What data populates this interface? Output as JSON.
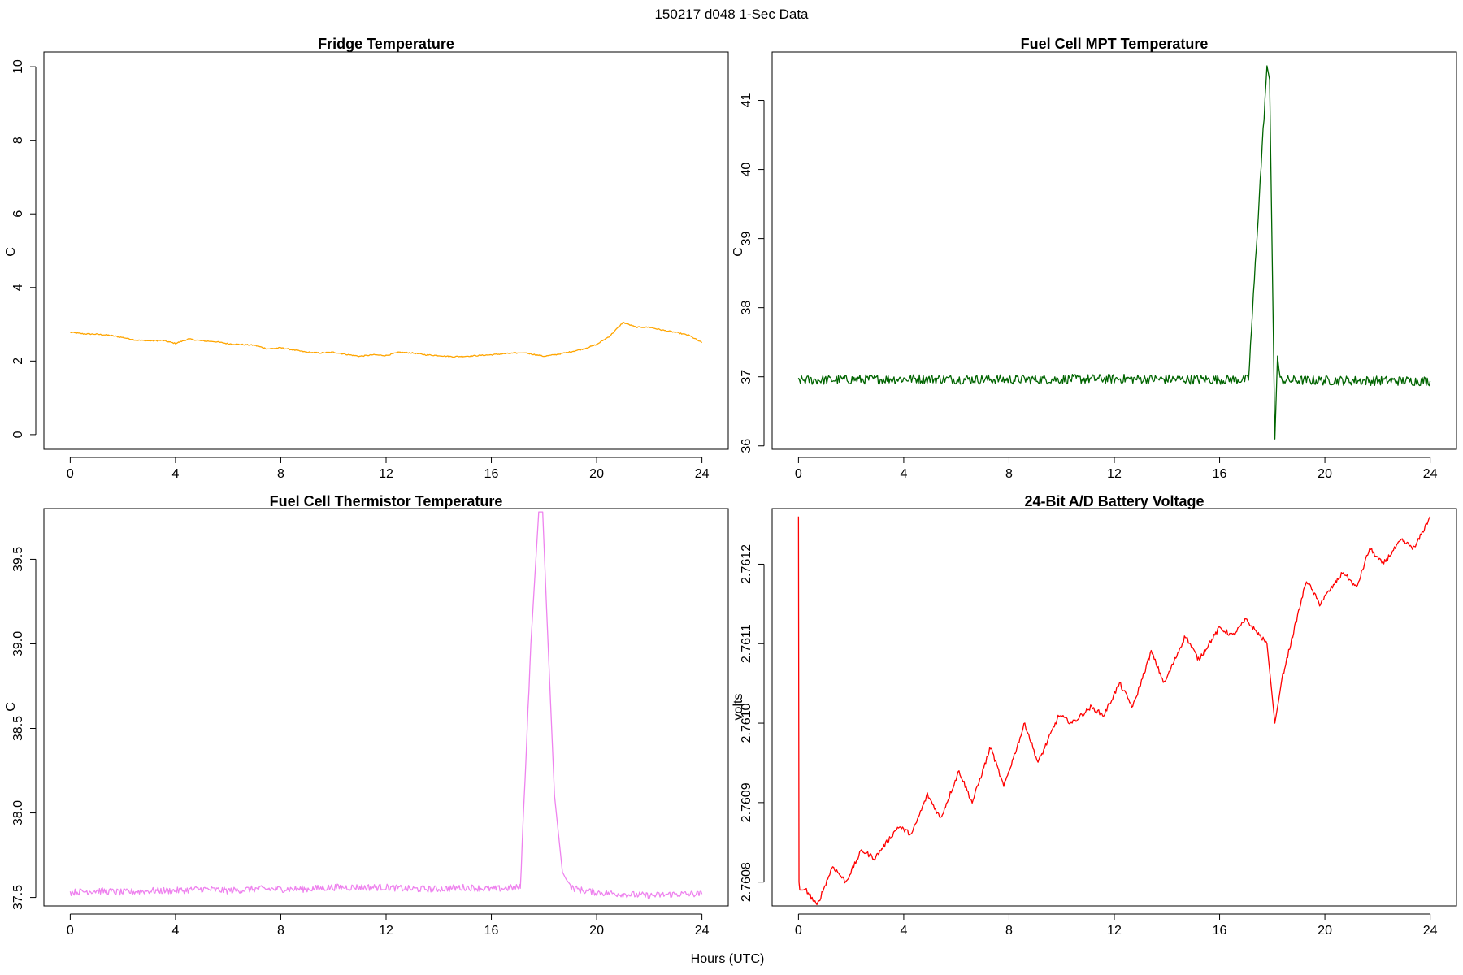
{
  "main_title": "150217   d048   1-Sec Data",
  "x_label": "Hours (UTC)",
  "chart_data": [
    {
      "id": "fridge",
      "type": "line",
      "title": "Fridge Temperature",
      "ylabel": "C",
      "color": "#FFA500",
      "xlim": [
        -1,
        25
      ],
      "ylim": [
        -0.4,
        10.4
      ],
      "x_ticks": [
        0,
        4,
        8,
        12,
        16,
        20,
        24
      ],
      "y_ticks": [
        0,
        2,
        4,
        6,
        8,
        10
      ],
      "y_tick_labels": [
        "0",
        "2",
        "4",
        "6",
        "8",
        "10"
      ],
      "noise": 0.015,
      "x": [
        0,
        0.5,
        1.0,
        1.5,
        2.0,
        2.5,
        3.0,
        3.5,
        4.0,
        4.5,
        5.0,
        5.5,
        6.0,
        6.5,
        7.0,
        7.5,
        8.0,
        8.5,
        9.0,
        9.5,
        10.0,
        10.5,
        11.0,
        11.5,
        12.0,
        12.5,
        13.0,
        13.5,
        14.0,
        14.5,
        15.0,
        15.5,
        16.0,
        16.5,
        17.0,
        17.3,
        18.0,
        18.5,
        19.0,
        19.5,
        20.0,
        20.5,
        21.0,
        21.5,
        22.0,
        22.5,
        23.0,
        23.5,
        24.0
      ],
      "y": [
        2.78,
        2.74,
        2.73,
        2.7,
        2.64,
        2.57,
        2.55,
        2.56,
        2.48,
        2.6,
        2.55,
        2.53,
        2.47,
        2.45,
        2.43,
        2.33,
        2.36,
        2.3,
        2.24,
        2.22,
        2.24,
        2.18,
        2.13,
        2.17,
        2.15,
        2.24,
        2.22,
        2.17,
        2.15,
        2.12,
        2.13,
        2.15,
        2.17,
        2.2,
        2.22,
        2.22,
        2.13,
        2.18,
        2.25,
        2.33,
        2.45,
        2.68,
        3.05,
        2.92,
        2.92,
        2.84,
        2.78,
        2.7,
        2.5
      ]
    },
    {
      "id": "mpt",
      "type": "line",
      "title": "Fuel Cell MPT Temperature",
      "ylabel": "C",
      "color": "#006400",
      "xlim": [
        -1,
        25
      ],
      "ylim": [
        35.95,
        41.7
      ],
      "x_ticks": [
        0,
        4,
        8,
        12,
        16,
        20,
        24
      ],
      "y_ticks": [
        36,
        37,
        38,
        39,
        40,
        41
      ],
      "y_tick_labels": [
        "36",
        "37",
        "38",
        "39",
        "40",
        "41"
      ],
      "noise": 0.07,
      "x": [
        0,
        4,
        8,
        12,
        16,
        17.1,
        17.8,
        17.9,
        18.1,
        18.2,
        18.3,
        24
      ],
      "y": [
        36.95,
        36.97,
        36.96,
        36.97,
        36.96,
        36.96,
        41.5,
        41.3,
        36.1,
        37.3,
        36.95,
        36.94
      ]
    },
    {
      "id": "thermistor",
      "type": "line",
      "title": "Fuel Cell Thermistor Temperature",
      "ylabel": "C",
      "color": "#EE82EE",
      "xlim": [
        -1,
        25
      ],
      "ylim": [
        37.45,
        39.8
      ],
      "x_ticks": [
        0,
        4,
        8,
        12,
        16,
        20,
        24
      ],
      "y_ticks": [
        37.5,
        38.0,
        38.5,
        39.0,
        39.5
      ],
      "y_tick_labels": [
        "37.5",
        "38.0",
        "38.5",
        "39.0",
        "39.5"
      ],
      "noise": 0.02,
      "x": [
        0,
        1,
        2,
        3,
        4,
        5,
        6,
        7,
        8,
        9,
        10,
        11,
        12,
        13,
        14,
        15,
        16,
        17.1,
        17.5,
        17.8,
        17.95,
        18.1,
        18.4,
        18.7,
        19.0,
        19.5,
        20,
        21,
        22,
        23,
        24
      ],
      "y": [
        37.53,
        37.54,
        37.53,
        37.54,
        37.54,
        37.55,
        37.54,
        37.55,
        37.55,
        37.55,
        37.56,
        37.56,
        37.56,
        37.55,
        37.55,
        37.56,
        37.55,
        37.56,
        39.0,
        39.78,
        39.78,
        39.2,
        38.1,
        37.65,
        37.56,
        37.54,
        37.53,
        37.52,
        37.51,
        37.52,
        37.52
      ]
    },
    {
      "id": "battery",
      "type": "line",
      "title": "24-Bit A/D Battery Voltage",
      "ylabel": "volts",
      "color": "#FF0000",
      "xlim": [
        -1,
        25
      ],
      "ylim": [
        2.76077,
        2.76127
      ],
      "x_ticks": [
        0,
        4,
        8,
        12,
        16,
        20,
        24
      ],
      "y_ticks": [
        2.7608,
        2.7609,
        2.761,
        2.7611,
        2.7612
      ],
      "y_tick_labels": [
        "2.7608",
        "2.7609",
        "2.7610",
        "2.7611",
        "2.7612"
      ],
      "noise": 3e-06,
      "x": [
        0,
        0.02,
        0.05,
        0.3,
        0.7,
        1.3,
        1.8,
        2.4,
        2.9,
        3.8,
        4.3,
        4.9,
        5.4,
        6.1,
        6.6,
        7.3,
        7.8,
        8.6,
        9.1,
        9.9,
        10.4,
        11.1,
        11.6,
        12.2,
        12.7,
        13.4,
        13.9,
        14.7,
        15.2,
        16.0,
        16.5,
        17.0,
        17.8,
        18.1,
        18.4,
        19.3,
        19.8,
        20.7,
        21.2,
        21.7,
        22.2,
        22.9,
        23.4,
        24.0
      ],
      "y": [
        2.76126,
        2.7608,
        2.76079,
        2.76079,
        2.76077,
        2.76082,
        2.7608,
        2.76084,
        2.76083,
        2.76087,
        2.76086,
        2.76091,
        2.76088,
        2.76094,
        2.7609,
        2.76097,
        2.76092,
        2.761,
        2.76095,
        2.76101,
        2.761,
        2.76102,
        2.76101,
        2.76105,
        2.76102,
        2.76109,
        2.76105,
        2.76111,
        2.76108,
        2.76112,
        2.76111,
        2.76113,
        2.7611,
        2.761,
        2.76106,
        2.76118,
        2.76115,
        2.76119,
        2.76117,
        2.76122,
        2.7612,
        2.76123,
        2.76122,
        2.76126
      ]
    }
  ]
}
